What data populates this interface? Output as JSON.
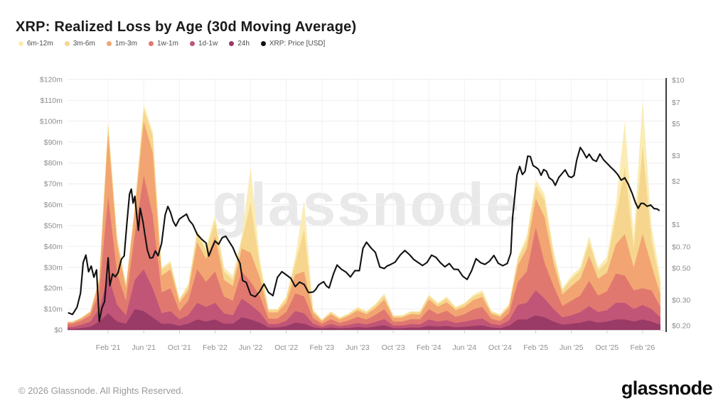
{
  "header": {
    "title": "XRP: Realized Loss by Age (30d Moving Average)"
  },
  "watermark": "glassnode",
  "footer": {
    "copyright": "© 2026 Glassnode. All Rights Reserved.",
    "brand": "glassnode"
  },
  "chart_data": {
    "type": "area",
    "title": "XRP: Realized Loss by Age (30d Moving Average)",
    "stacking": "stacked bottom-to-top: 24h, 1d-1w, 1w-1m, 1m-3m, 3m-6m, 6m-12m; overlaid price line on right log axis",
    "x_axis": {
      "start_month": "Oct '20",
      "tick_labels": [
        "Feb '21",
        "Jun '21",
        "Oct '21",
        "Feb '22",
        "Jun '22",
        "Oct '22",
        "Feb '23",
        "Jun '23",
        "Oct '23",
        "Feb '24",
        "Jun '24",
        "Oct '24",
        "Feb '25",
        "Jun '25",
        "Oct '25",
        "Feb '26"
      ],
      "tick_month_indices": [
        4,
        8,
        12,
        16,
        20,
        24,
        28,
        32,
        36,
        40,
        44,
        48,
        52,
        56,
        60,
        64
      ]
    },
    "left_axis": {
      "unit": "USD millions (realized loss, 30d MA)",
      "max": 120,
      "tick_values": [
        0,
        10,
        20,
        30,
        40,
        50,
        60,
        70,
        80,
        90,
        100,
        110,
        120
      ],
      "tick_labels": [
        "$0",
        "$10m",
        "$20m",
        "$30m",
        "$40m",
        "$50m",
        "$60m",
        "$70m",
        "$80m",
        "$90m",
        "$100m",
        "$110m",
        "$120m"
      ]
    },
    "right_axis": {
      "scale": "log",
      "min": 0.2,
      "max": 10,
      "tick_values": [
        10,
        7,
        5,
        3,
        2,
        1,
        0.7,
        0.5,
        0.3,
        0.2
      ],
      "tick_labels": [
        "$10",
        "$7",
        "$5",
        "$3",
        "$2",
        "$1",
        "$0.70",
        "$0.50",
        "$0.30",
        "$0.20"
      ]
    },
    "series": [
      {
        "name": "24h",
        "color": "#9a3a66",
        "values": [
          0.5,
          1,
          1.5,
          4,
          8,
          4,
          3,
          10,
          9,
          6,
          3,
          3,
          2,
          3,
          5,
          4,
          5,
          3,
          3,
          6,
          5,
          3.5,
          1.2,
          1.2,
          1.8,
          3.5,
          3,
          1.3,
          0.7,
          1.2,
          0.8,
          1,
          1.4,
          1.1,
          1.6,
          2.2,
          0.9,
          0.9,
          1.2,
          1.1,
          2,
          1.6,
          1.9,
          1.3,
          1.5,
          1.9,
          2.1,
          1.2,
          0.9,
          2,
          5,
          5,
          7,
          6,
          4,
          2.5,
          3,
          3.5,
          4.5,
          3.5,
          4,
          5,
          5,
          4,
          5,
          4,
          2.5
        ]
      },
      {
        "name": "1d-1w",
        "color": "#c05577",
        "values": [
          1,
          1.5,
          2.5,
          6,
          18,
          8,
          4,
          14,
          20,
          14,
          5,
          6,
          3,
          4,
          8,
          7,
          8,
          5,
          4,
          9,
          7,
          5,
          1.6,
          1.6,
          2.6,
          5.5,
          5,
          1.7,
          0.9,
          1.6,
          1,
          1.4,
          1.9,
          1.5,
          2.2,
          3,
          1.2,
          1.2,
          1.6,
          1.5,
          3,
          2.4,
          2.8,
          2,
          2.4,
          3,
          3.4,
          1.7,
          1.4,
          2.5,
          7,
          8,
          12,
          9,
          6,
          3.5,
          4,
          5,
          7,
          5,
          5.5,
          8,
          8,
          6,
          7,
          6,
          3.5
        ]
      },
      {
        "name": "1w-1m",
        "color": "#e07870",
        "values": [
          1.5,
          2,
          3,
          8,
          38,
          15,
          7,
          22,
          45,
          35,
          10,
          11,
          4,
          7,
          16,
          12,
          15,
          8,
          7,
          13,
          11,
          8,
          2.6,
          2.6,
          4.2,
          8.5,
          8,
          2.7,
          1.4,
          2.4,
          1.6,
          2.2,
          3,
          2.4,
          3.4,
          4.8,
          1.9,
          1.9,
          2.4,
          2.5,
          5,
          3.6,
          4.5,
          3,
          3.6,
          5,
          5.5,
          2.5,
          2,
          3.5,
          11,
          15,
          30,
          17,
          11,
          5.5,
          7,
          8,
          12,
          8,
          9,
          14,
          13,
          9,
          8,
          9,
          5
        ]
      },
      {
        "name": "1m-3m",
        "color": "#f2a572",
        "values": [
          0.7,
          1,
          1.5,
          5,
          30,
          14,
          6,
          11,
          26,
          30,
          8,
          9,
          4,
          5,
          13,
          11,
          17,
          8,
          7,
          11,
          14,
          9,
          3,
          3,
          4.4,
          9,
          12,
          2.6,
          1.2,
          2.3,
          1.6,
          2.2,
          3,
          2.5,
          3.3,
          4.5,
          1.9,
          1.9,
          2.4,
          2.3,
          4.6,
          3.5,
          4.1,
          3.2,
          3.5,
          4.4,
          4.8,
          2.4,
          2,
          2.8,
          8,
          11,
          14,
          22,
          11,
          5.5,
          7,
          8,
          12,
          8,
          9,
          14,
          20,
          11,
          26,
          12,
          6
        ]
      },
      {
        "name": "3m-6m",
        "color": "#f6d68e",
        "values": [
          0.2,
          0.4,
          0.4,
          1.5,
          5,
          3,
          1.5,
          2.5,
          6,
          8,
          3,
          3,
          1.5,
          2,
          4,
          4,
          7,
          4,
          3,
          4,
          24,
          6,
          1.2,
          1.2,
          2.2,
          5.5,
          20,
          1.2,
          0.6,
          1,
          0.7,
          0.8,
          1.2,
          1,
          1.3,
          2,
          0.8,
          0.8,
          1,
          1.2,
          1.6,
          1.3,
          1.8,
          1.1,
          1.4,
          1.7,
          2,
          1,
          0.8,
          1.1,
          3,
          4,
          6,
          8,
          4,
          2,
          3.5,
          4,
          6.5,
          4,
          5,
          13,
          32,
          9,
          42,
          12,
          5
        ]
      },
      {
        "name": "6m-12m",
        "color": "#faecb4",
        "values": [
          0.1,
          0.1,
          0.1,
          0.5,
          1,
          1,
          0.5,
          0.5,
          2,
          2,
          1,
          1,
          0.5,
          1,
          2,
          2,
          3,
          2,
          2,
          2,
          17,
          3.5,
          0.4,
          0.4,
          0.8,
          3,
          14,
          0.5,
          0.2,
          0.5,
          0.3,
          0.4,
          0.5,
          0.5,
          0.7,
          1,
          0.3,
          0.3,
          0.4,
          0.4,
          0.8,
          0.6,
          0.9,
          0.4,
          0.6,
          1,
          1.2,
          0.5,
          0.4,
          0.6,
          1,
          2,
          3,
          3,
          2,
          1,
          1.5,
          1.5,
          3,
          1.5,
          2.5,
          6,
          22,
          6,
          22,
          7,
          3
        ]
      }
    ],
    "price": {
      "name": "XRP: Price [USD]",
      "color": "#111111",
      "unit": "USD",
      "points": [
        [
          -0.5,
          0.25
        ],
        [
          0,
          0.24
        ],
        [
          0.5,
          0.27
        ],
        [
          0.9,
          0.33
        ],
        [
          1.2,
          0.56
        ],
        [
          1.5,
          0.62
        ],
        [
          1.8,
          0.47
        ],
        [
          2.1,
          0.52
        ],
        [
          2.4,
          0.44
        ],
        [
          2.7,
          0.48
        ],
        [
          3.0,
          0.21
        ],
        [
          3.3,
          0.26
        ],
        [
          3.6,
          0.29
        ],
        [
          4.0,
          0.6
        ],
        [
          4.2,
          0.38
        ],
        [
          4.5,
          0.46
        ],
        [
          4.8,
          0.43
        ],
        [
          5.1,
          0.47
        ],
        [
          5.5,
          0.57
        ],
        [
          5.8,
          0.6
        ],
        [
          6.1,
          1.0
        ],
        [
          6.4,
          1.62
        ],
        [
          6.6,
          1.78
        ],
        [
          6.8,
          1.38
        ],
        [
          7.0,
          1.58
        ],
        [
          7.2,
          1.15
        ],
        [
          7.4,
          0.9
        ],
        [
          7.6,
          1.28
        ],
        [
          7.9,
          1.08
        ],
        [
          8.1,
          0.86
        ],
        [
          8.4,
          0.68
        ],
        [
          8.7,
          0.6
        ],
        [
          9.0,
          0.58
        ],
        [
          9.3,
          0.66
        ],
        [
          9.6,
          0.61
        ],
        [
          10.0,
          0.76
        ],
        [
          10.4,
          1.15
        ],
        [
          10.7,
          1.32
        ],
        [
          11.0,
          1.24
        ],
        [
          11.3,
          1.06
        ],
        [
          11.6,
          0.96
        ],
        [
          12.0,
          1.08
        ],
        [
          12.4,
          1.12
        ],
        [
          12.8,
          1.18
        ],
        [
          13.1,
          1.08
        ],
        [
          13.5,
          0.98
        ],
        [
          14.0,
          0.86
        ],
        [
          14.5,
          0.8
        ],
        [
          15.0,
          0.74
        ],
        [
          15.3,
          0.61
        ],
        [
          15.7,
          0.7
        ],
        [
          16.0,
          0.79
        ],
        [
          16.4,
          0.73
        ],
        [
          16.8,
          0.81
        ],
        [
          17.2,
          0.84
        ],
        [
          17.6,
          0.77
        ],
        [
          18.0,
          0.7
        ],
        [
          18.4,
          0.61
        ],
        [
          18.8,
          0.54
        ],
        [
          19.1,
          0.41
        ],
        [
          19.5,
          0.39
        ],
        [
          20.0,
          0.33
        ],
        [
          20.5,
          0.31
        ],
        [
          21.0,
          0.35
        ],
        [
          21.5,
          0.38
        ],
        [
          22.0,
          0.34
        ],
        [
          22.5,
          0.33
        ],
        [
          23.0,
          0.43
        ],
        [
          23.5,
          0.48
        ],
        [
          24.0,
          0.46
        ],
        [
          24.5,
          0.43
        ],
        [
          25.0,
          0.38
        ],
        [
          25.5,
          0.4
        ],
        [
          26.0,
          0.38
        ],
        [
          26.5,
          0.34
        ],
        [
          27.0,
          0.34
        ],
        [
          27.6,
          0.38
        ],
        [
          28.2,
          0.4
        ],
        [
          28.8,
          0.37
        ],
        [
          29.3,
          0.46
        ],
        [
          29.7,
          0.53
        ],
        [
          30.2,
          0.5
        ],
        [
          30.7,
          0.46
        ],
        [
          31.2,
          0.43
        ],
        [
          31.7,
          0.47
        ],
        [
          32.2,
          0.48
        ],
        [
          32.6,
          0.69
        ],
        [
          33.0,
          0.74
        ],
        [
          33.5,
          0.7
        ],
        [
          34.0,
          0.63
        ],
        [
          34.5,
          0.51
        ],
        [
          35.0,
          0.5
        ],
        [
          35.6,
          0.52
        ],
        [
          36.2,
          0.55
        ],
        [
          36.8,
          0.61
        ],
        [
          37.3,
          0.66
        ],
        [
          37.8,
          0.61
        ],
        [
          38.3,
          0.57
        ],
        [
          38.8,
          0.54
        ],
        [
          39.3,
          0.51
        ],
        [
          39.8,
          0.55
        ],
        [
          40.3,
          0.62
        ],
        [
          40.8,
          0.6
        ],
        [
          41.3,
          0.54
        ],
        [
          41.8,
          0.51
        ],
        [
          42.3,
          0.54
        ],
        [
          42.8,
          0.5
        ],
        [
          43.3,
          0.48
        ],
        [
          43.8,
          0.44
        ],
        [
          44.3,
          0.42
        ],
        [
          44.8,
          0.49
        ],
        [
          45.3,
          0.58
        ],
        [
          45.8,
          0.55
        ],
        [
          46.3,
          0.52
        ],
        [
          46.8,
          0.57
        ],
        [
          47.3,
          0.62
        ],
        [
          47.8,
          0.54
        ],
        [
          48.3,
          0.51
        ],
        [
          48.8,
          0.54
        ],
        [
          49.2,
          0.65
        ],
        [
          49.4,
          1.15
        ],
        [
          49.6,
          1.45
        ],
        [
          49.9,
          2.25
        ],
        [
          50.2,
          2.55
        ],
        [
          50.5,
          2.2
        ],
        [
          50.8,
          2.35
        ],
        [
          51.1,
          3.05
        ],
        [
          51.4,
          2.9
        ],
        [
          51.7,
          2.6
        ],
        [
          52.0,
          2.55
        ],
        [
          52.3,
          2.38
        ],
        [
          52.6,
          2.2
        ],
        [
          52.9,
          2.45
        ],
        [
          53.2,
          2.38
        ],
        [
          53.5,
          2.12
        ],
        [
          53.9,
          2.05
        ],
        [
          54.2,
          1.88
        ],
        [
          54.6,
          2.12
        ],
        [
          55.0,
          2.32
        ],
        [
          55.3,
          2.42
        ],
        [
          55.7,
          2.2
        ],
        [
          56.0,
          2.14
        ],
        [
          56.3,
          2.24
        ],
        [
          56.6,
          2.85
        ],
        [
          57.0,
          3.38
        ],
        [
          57.3,
          3.18
        ],
        [
          57.7,
          2.95
        ],
        [
          58.0,
          3.05
        ],
        [
          58.4,
          2.86
        ],
        [
          58.8,
          2.78
        ],
        [
          59.2,
          3.02
        ],
        [
          59.6,
          2.85
        ],
        [
          60.0,
          2.68
        ],
        [
          60.4,
          2.5
        ],
        [
          60.8,
          2.36
        ],
        [
          61.2,
          2.28
        ],
        [
          61.6,
          2.05
        ],
        [
          62.0,
          2.1
        ],
        [
          62.4,
          1.92
        ],
        [
          62.8,
          1.7
        ],
        [
          63.2,
          1.42
        ],
        [
          63.5,
          1.3
        ],
        [
          63.8,
          1.4
        ],
        [
          64.1,
          1.38
        ],
        [
          64.5,
          1.32
        ],
        [
          64.9,
          1.36
        ],
        [
          65.3,
          1.28
        ],
        [
          65.9,
          1.25
        ]
      ]
    }
  }
}
